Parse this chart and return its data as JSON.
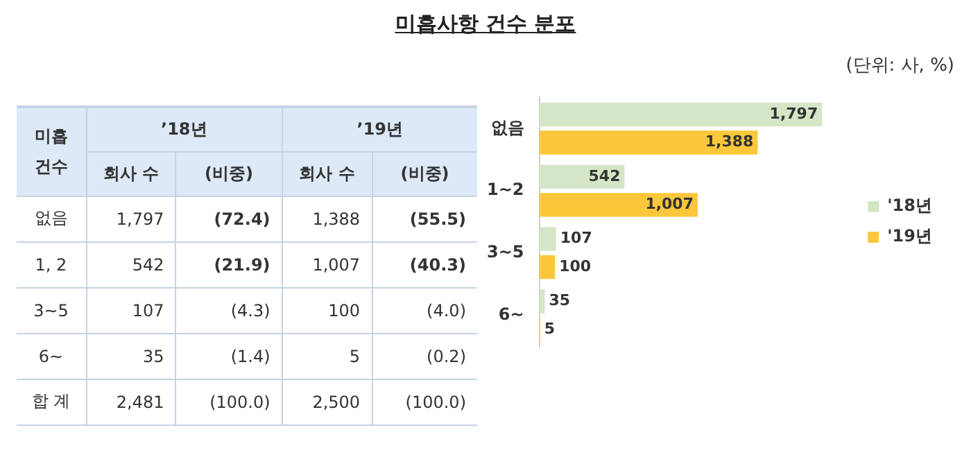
{
  "chart_data": [
    {
      "type": "other",
      "title": "미흡사항 건수 분포",
      "annotations": [
        "미흡 건수",
        "’18년",
        "’19년",
        "회사 수",
        "(비중)",
        "회사 수",
        "(비중)",
        "없음",
        "1,797",
        "(72.4)",
        "1,388",
        "(55.5)",
        "1, 2",
        "542",
        "(21.9)",
        "1,007",
        "(40.3)",
        "3~5",
        "107",
        "(4.3)",
        "100",
        "(4.0)",
        "6~",
        "35",
        "(1.4)",
        "5",
        "(0.2)",
        "합 계",
        "2,481",
        "(100.0)",
        "2,500",
        "(100.0)"
      ]
    },
    {
      "type": "bar",
      "orientation": "horizontal",
      "categories": [
        "없음",
        "1~2",
        "3~5",
        "6~"
      ],
      "series": [
        {
          "name": "'18년",
          "color": "#d5e6c6",
          "values": [
            1797,
            542,
            107,
            35
          ],
          "value_labels": [
            "1,797",
            "542",
            "107",
            "35"
          ]
        },
        {
          "name": "'19년",
          "color": "#fcc73a",
          "values": [
            1388,
            1007,
            100,
            5
          ],
          "value_labels": [
            "1,388",
            "1,007",
            "100",
            "5"
          ]
        }
      ],
      "legend": "right",
      "annotations": [
        "(단위: 사, %)"
      ]
    }
  ]
}
